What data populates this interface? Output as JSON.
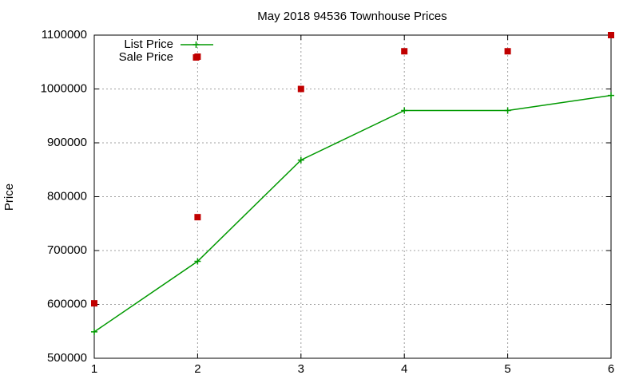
{
  "chart_data": {
    "type": "line",
    "title": "May 2018 94536 Townhouse Prices",
    "ylabel": "Price",
    "xlim": [
      1,
      6
    ],
    "xticks": [
      1,
      2,
      3,
      4,
      5,
      6
    ],
    "ylim": [
      500000,
      1100000
    ],
    "yticks": [
      500000,
      600000,
      700000,
      800000,
      900000,
      1000000,
      1100000
    ],
    "grid": true,
    "legend": "top-left",
    "series": [
      {
        "name": "List Price",
        "color": "#009900",
        "line": true,
        "marker": "plus",
        "x": [
          1,
          2,
          3,
          4,
          5,
          6
        ],
        "values": [
          549000,
          680000,
          868000,
          960000,
          960000,
          988000
        ]
      },
      {
        "name": "Sale Price",
        "color": "#c00000",
        "line": false,
        "marker": "square",
        "x": [
          1,
          2,
          2,
          3,
          4,
          5,
          6
        ],
        "values": [
          602000,
          762000,
          1060000,
          1000000,
          1070000,
          1070000,
          1100000
        ]
      }
    ]
  }
}
